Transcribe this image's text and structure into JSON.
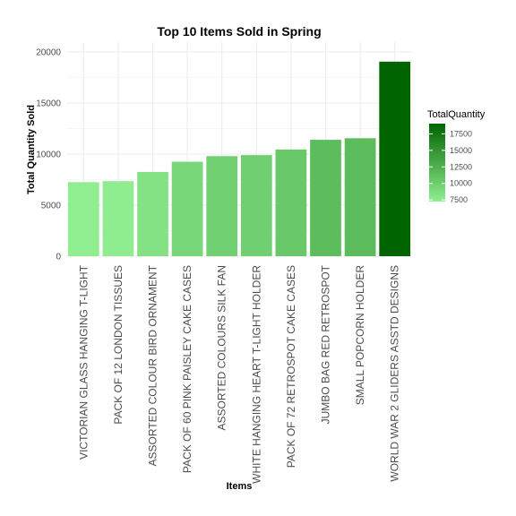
{
  "chart_data": {
    "type": "bar",
    "title": "Top 10 Items Sold in Spring",
    "xlabel": "Items",
    "ylabel": "Total Quantity Sold",
    "categories": [
      "VICTORIAN GLASS HANGING T-LIGHT",
      "PACK OF 12 LONDON TISSUES",
      "ASSORTED COLOUR BIRD ORNAMENT",
      "PACK OF 60 PINK PAISLEY CAKE CASES",
      "ASSORTED COLOURS SILK FAN",
      "WHITE HANGING HEART T-LIGHT HOLDER",
      "PACK OF 72 RETROSPOT CAKE CASES",
      "JUMBO BAG RED RETROSPOT",
      "SMALL POPCORN HOLDER",
      "WORLD WAR 2 GLIDERS ASSTD DESIGNS"
    ],
    "values": [
      7250,
      7350,
      8250,
      9250,
      9800,
      9900,
      10450,
      11400,
      11550,
      19050
    ],
    "ylim": [
      0,
      20000
    ],
    "yticks": [
      0,
      5000,
      10000,
      15000,
      20000
    ],
    "grid": true,
    "legend": {
      "title": "TotalQuantity",
      "position": "right",
      "breaks": [
        7500,
        10000,
        12500,
        15000,
        17500
      ],
      "range": [
        7250,
        19050
      ],
      "color_low": "#90EE90",
      "color_high": "#006400"
    }
  }
}
